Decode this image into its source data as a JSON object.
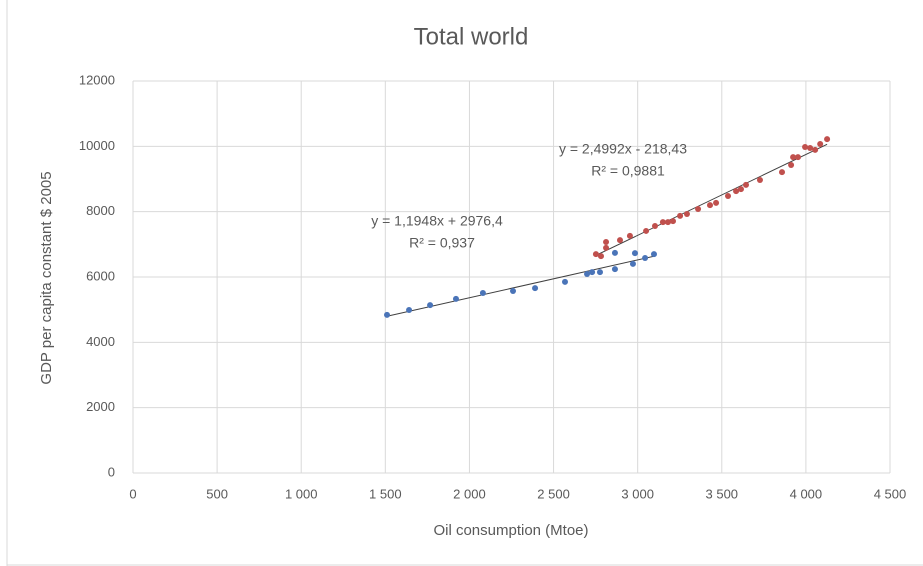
{
  "chart_data": {
    "type": "scatter",
    "title": "Total world",
    "x_label": "Oil consumption (Mtoe)",
    "y_label": "GDP per capita constant $ 2005",
    "xlim": [
      0,
      4500
    ],
    "xticks": [
      0,
      500,
      {
        "value": 1000,
        "label": "1 000"
      },
      {
        "value": 1500,
        "label": "1 500"
      },
      {
        "value": 2000,
        "label": "2 000"
      },
      {
        "value": 2500,
        "label": "2 500"
      },
      {
        "value": 3000,
        "label": "3 000"
      },
      {
        "value": 3500,
        "label": "3 500"
      },
      {
        "value": 4000,
        "label": "4 000"
      },
      {
        "value": 4500,
        "label": "4 500"
      }
    ],
    "ylim": [
      0,
      12000
    ],
    "yticks": [
      0,
      2000,
      4000,
      6000,
      8000,
      10000,
      12000
    ],
    "grid": true,
    "trendline": true,
    "series": [
      {
        "color": "#4a74b8",
        "x": [
          1510,
          1641,
          1766,
          1920,
          2080,
          2259,
          2390,
          2568,
          2699,
          2729,
          2776,
          2865,
          2865,
          2972,
          2984,
          3044,
          3097
        ],
        "values": [
          4840,
          4990,
          5140,
          5330,
          5510,
          5570,
          5660,
          5850,
          6090,
          6150,
          6150,
          6240,
          6740,
          6400,
          6730,
          6580,
          6700
        ],
        "annotations": [
          "y = 1,1948x + 2976,4",
          "R² = 0,937"
        ]
      },
      {
        "color": "#c0504d",
        "x": [
          2752,
          2782,
          2812,
          2812,
          2895,
          2954,
          3050,
          3103,
          3150,
          3180,
          3210,
          3252,
          3293,
          3359,
          3430,
          3466,
          3537,
          3585,
          3614,
          3644,
          3727,
          3858,
          3912,
          3924,
          3953,
          3995,
          4025,
          4055,
          4085,
          4126
        ],
        "values": [
          6700,
          6640,
          7070,
          6890,
          7130,
          7260,
          7410,
          7560,
          7680,
          7680,
          7710,
          7870,
          7930,
          8080,
          8200,
          8270,
          8480,
          8630,
          8690,
          8820,
          8970,
          9210,
          9430,
          9670,
          9670,
          9980,
          9950,
          9890,
          10070,
          10220
        ],
        "annotations": [
          "y = 2,4992x - 218,43",
          "R² = 0,9881"
        ]
      }
    ]
  }
}
